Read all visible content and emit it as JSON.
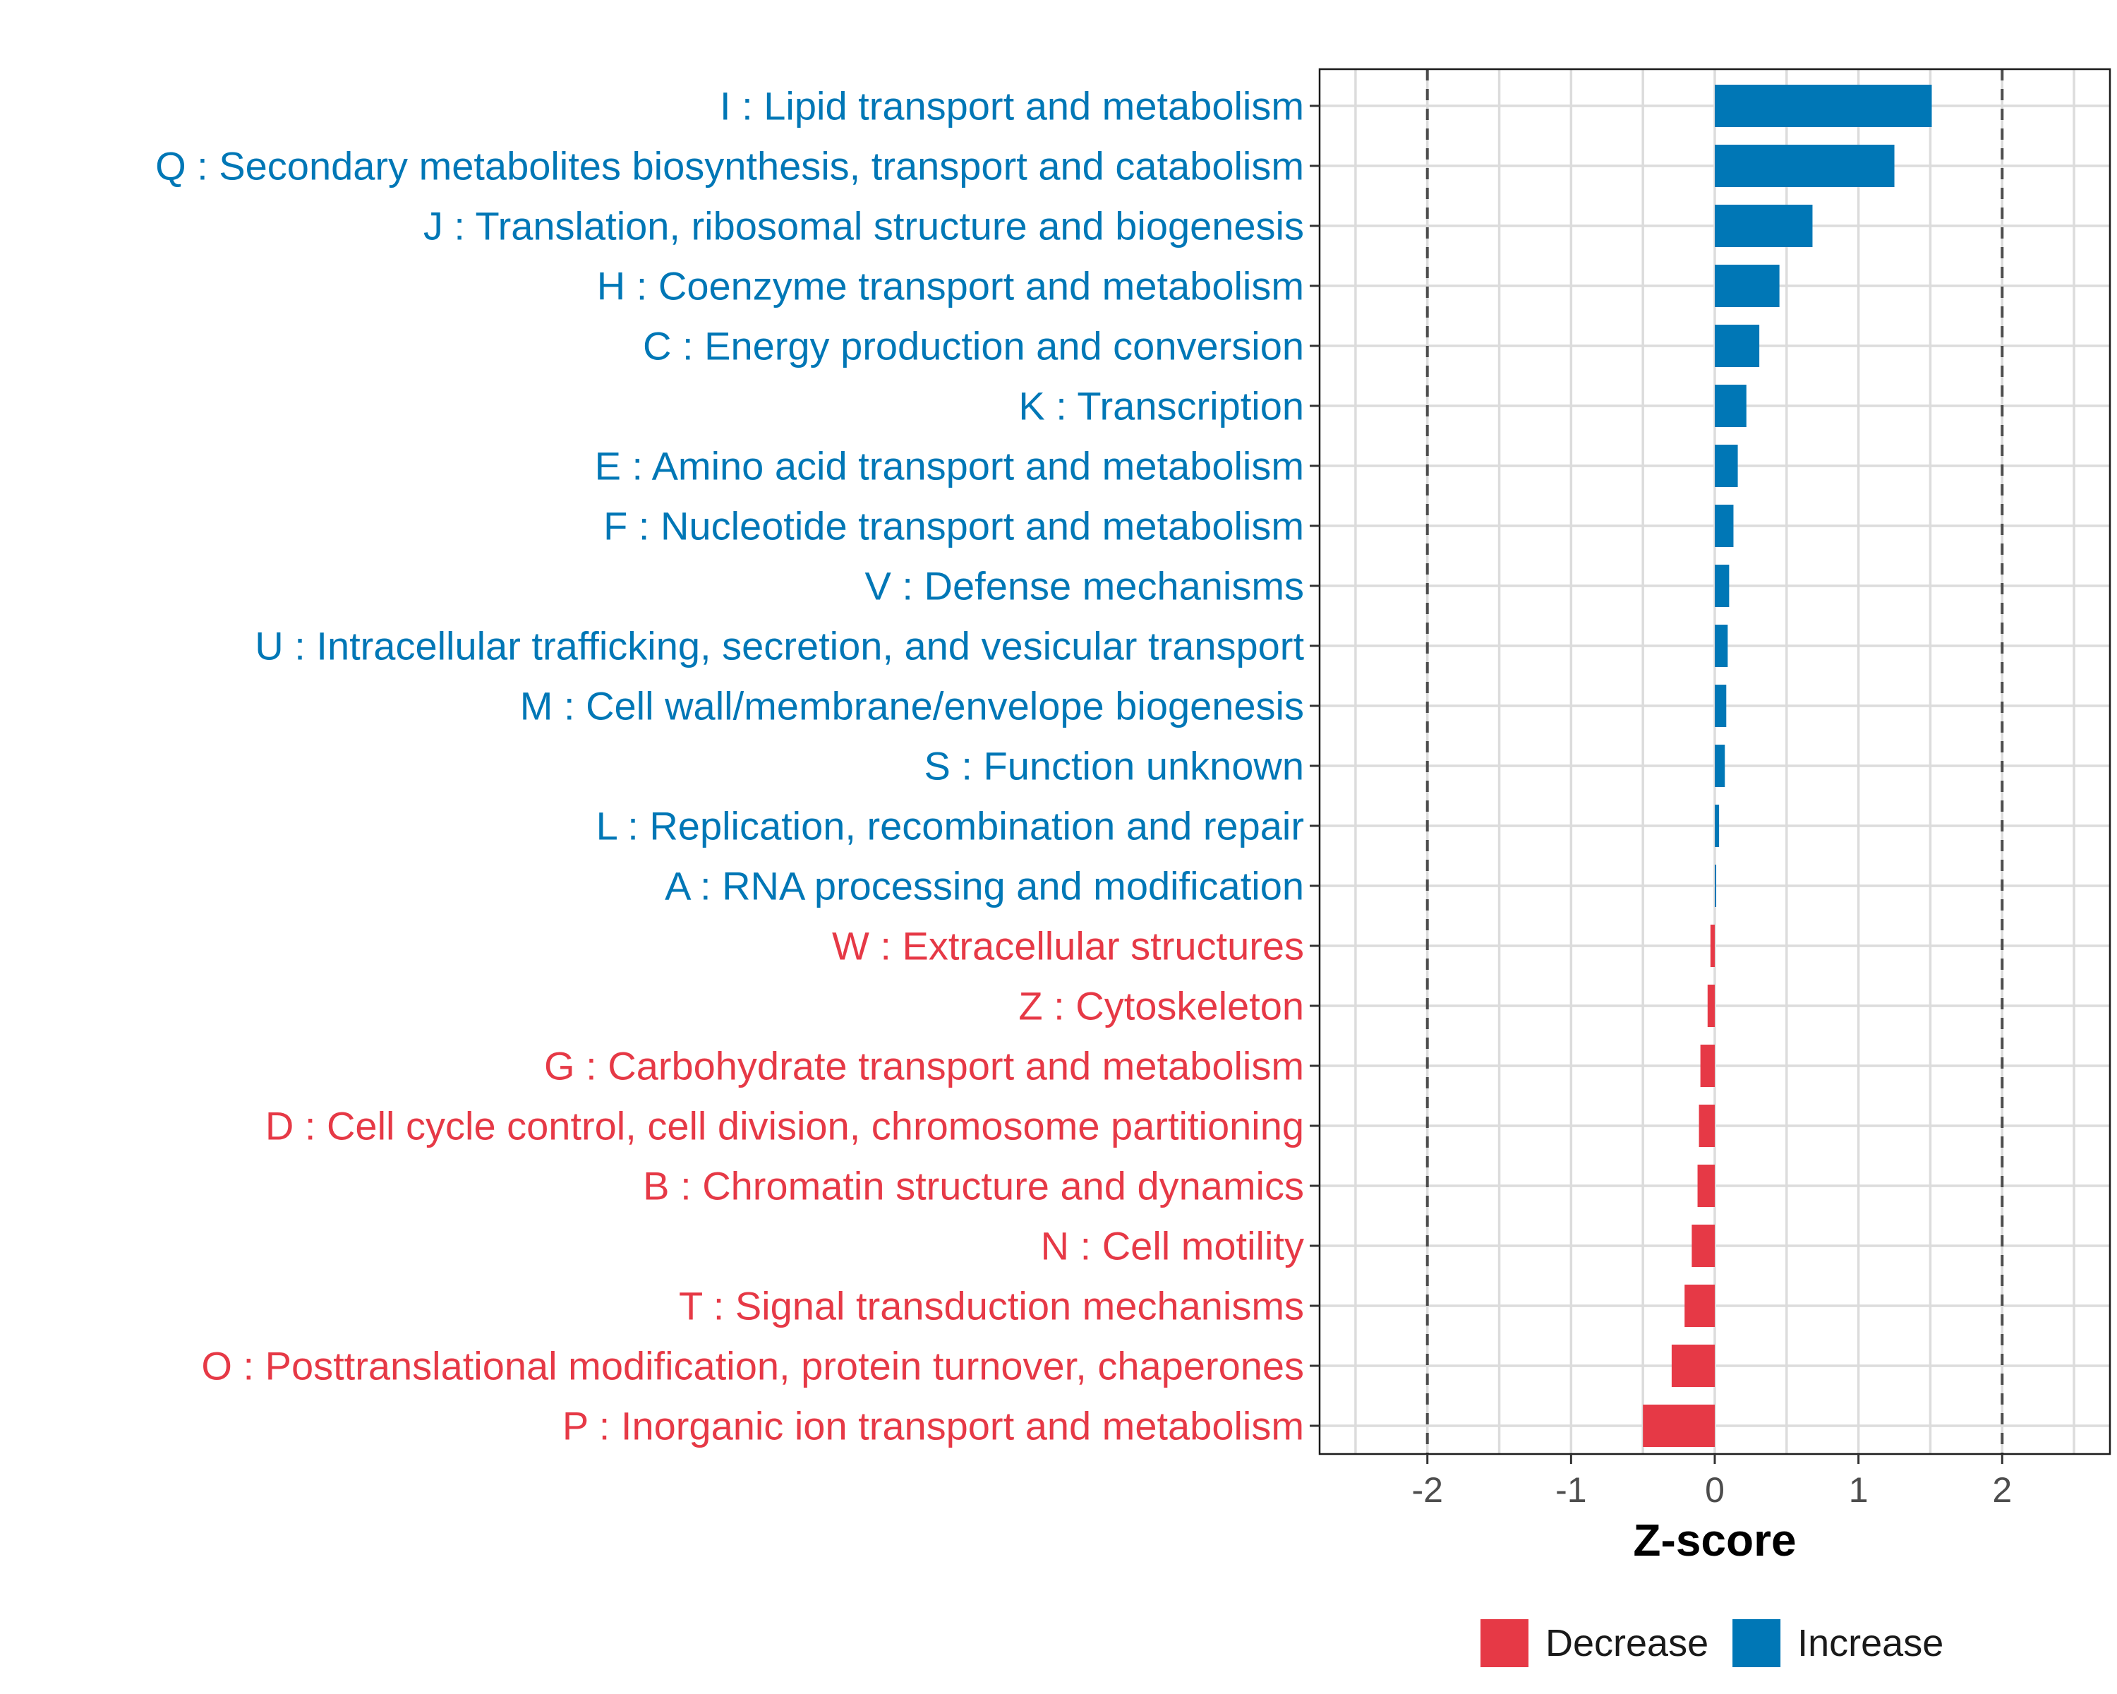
{
  "chart_data": {
    "type": "bar",
    "orientation": "horizontal",
    "title": "",
    "xlabel": "Z-score",
    "ylabel": "",
    "xlim": [
      -2.75,
      2.75
    ],
    "x_ticks": [
      -2,
      -1,
      0,
      1,
      2
    ],
    "x_tick_labels": [
      "-2",
      "-1",
      "0",
      "1",
      "2"
    ],
    "reference_lines": [
      -2,
      2
    ],
    "grid": true,
    "legend_position": "bottom",
    "colors": {
      "Decrease": "#E63946",
      "Increase": "#0077B6"
    },
    "legend": [
      "Decrease",
      "Increase"
    ],
    "categories": [
      "I : Lipid transport and metabolism",
      "Q : Secondary metabolites biosynthesis, transport and catabolism",
      "J : Translation, ribosomal structure and biogenesis",
      "H : Coenzyme transport and metabolism",
      "C : Energy production and conversion",
      "K : Transcription",
      "E : Amino acid transport and metabolism",
      "F : Nucleotide transport and metabolism",
      "V : Defense mechanisms",
      "U : Intracellular trafficking, secretion, and vesicular transport",
      "M : Cell wall/membrane/envelope biogenesis",
      "S : Function unknown",
      "L : Replication, recombination and repair",
      "A : RNA processing and modification",
      "W : Extracellular structures",
      "Z : Cytoskeleton",
      "G : Carbohydrate transport and metabolism",
      "D : Cell cycle control, cell division, chromosome partitioning",
      "B : Chromatin structure and dynamics",
      "N : Cell motility",
      "T : Signal transduction mechanisms",
      "O : Posttranslational modification, protein turnover, chaperones",
      "P : Inorganic ion transport and metabolism"
    ],
    "values": [
      1.51,
      1.25,
      0.68,
      0.45,
      0.31,
      0.22,
      0.16,
      0.13,
      0.1,
      0.09,
      0.08,
      0.07,
      0.03,
      0.01,
      -0.03,
      -0.05,
      -0.1,
      -0.11,
      -0.12,
      -0.16,
      -0.21,
      -0.3,
      -0.5
    ],
    "groups": [
      "Increase",
      "Increase",
      "Increase",
      "Increase",
      "Increase",
      "Increase",
      "Increase",
      "Increase",
      "Increase",
      "Increase",
      "Increase",
      "Increase",
      "Increase",
      "Increase",
      "Decrease",
      "Decrease",
      "Decrease",
      "Decrease",
      "Decrease",
      "Decrease",
      "Decrease",
      "Decrease",
      "Decrease"
    ]
  }
}
